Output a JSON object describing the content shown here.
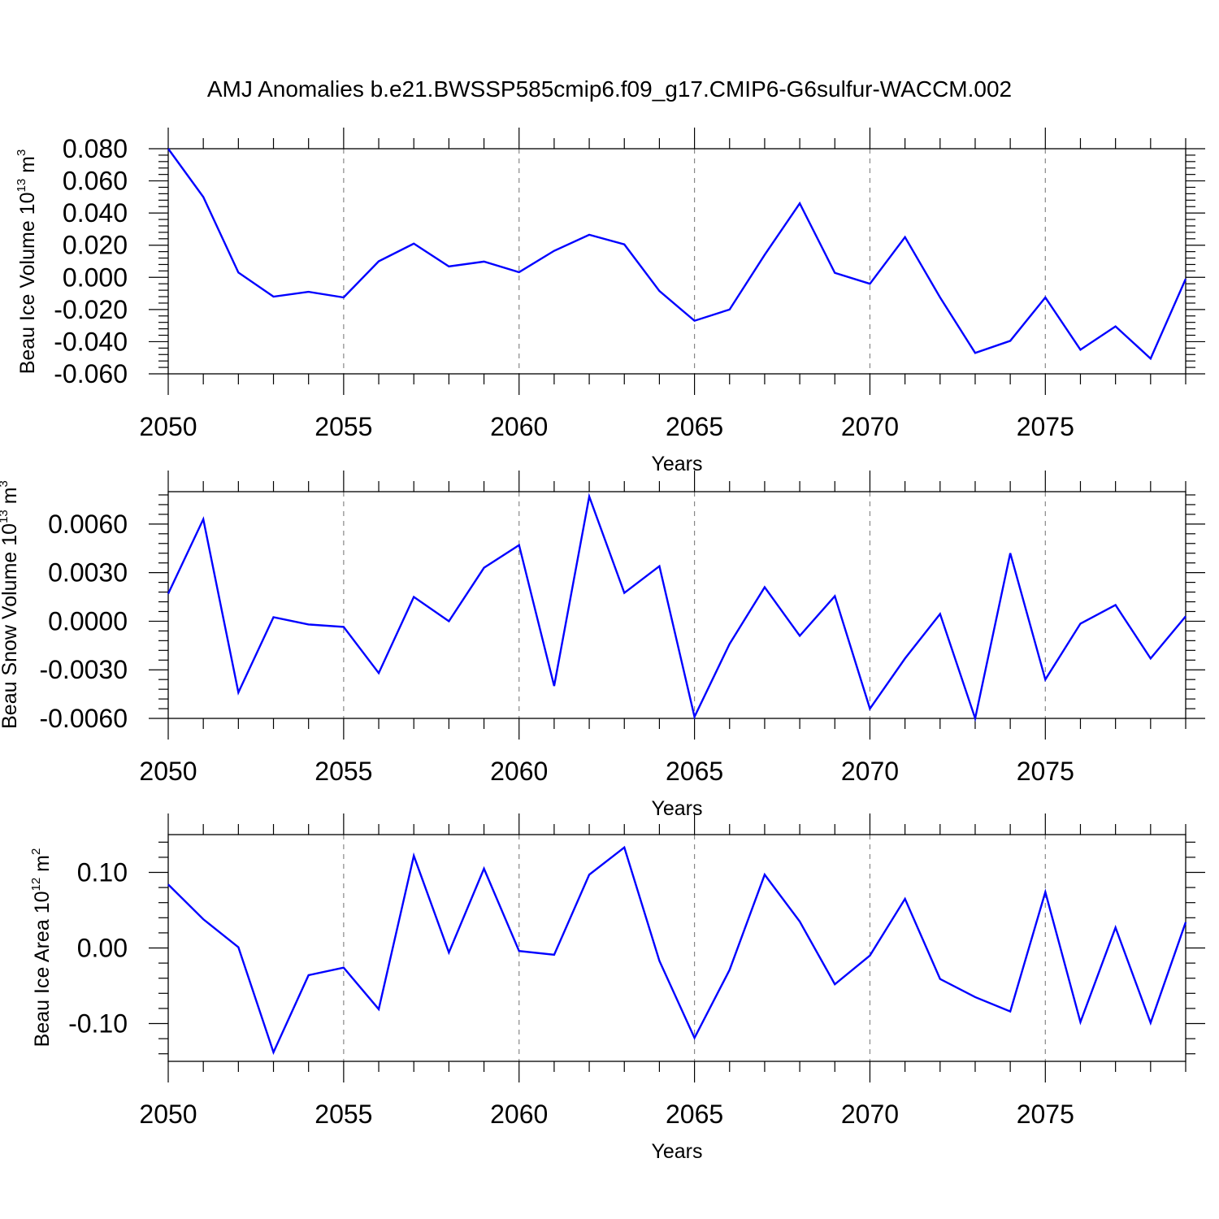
{
  "chart_data": [
    {
      "type": "line",
      "title": "AMJ Anomalies b.e21.BWSSP585cmip6.f09_g17.CMIP6-G6sulfur-WACCM.002",
      "xlabel": "Years",
      "ylabel": "Beau Ice Volume 10",
      "ylabel_sup": "13",
      "ylabel_unit": "m",
      "ylabel_unit_sup": "3",
      "xlim": [
        2050,
        2079
      ],
      "ylim": [
        -0.06,
        0.08
      ],
      "xticks": [
        "2050",
        "2055",
        "2060",
        "2065",
        "2070",
        "2075"
      ],
      "yticks": [
        "0.080",
        "0.060",
        "0.040",
        "0.020",
        "0.000",
        "-0.020",
        "-0.040",
        "-0.060"
      ],
      "grid": "dashed vertical at major x ticks",
      "line_color": "#0000ff",
      "x": [
        2050,
        2051,
        2052,
        2053,
        2054,
        2055,
        2056,
        2057,
        2058,
        2059,
        2060,
        2061,
        2062,
        2063,
        2064,
        2065,
        2066,
        2067,
        2068,
        2069,
        2070,
        2071,
        2072,
        2073,
        2074,
        2075,
        2076,
        2077,
        2078,
        2079
      ],
      "values": [
        0.08,
        0.05,
        0.003,
        -0.012,
        -0.009,
        -0.0125,
        0.01,
        0.021,
        0.0068,
        0.0098,
        0.0032,
        0.0165,
        0.0265,
        0.0205,
        -0.0085,
        -0.027,
        -0.02,
        0.014,
        0.046,
        0.0028,
        -0.004,
        0.025,
        -0.0125,
        -0.047,
        -0.0395,
        -0.0125,
        -0.045,
        -0.0305,
        -0.0505,
        -0.001
      ]
    },
    {
      "type": "line",
      "xlabel": "Years",
      "ylabel": "Beau Snow Volume 10",
      "ylabel_sup": "13",
      "ylabel_unit": "m",
      "ylabel_unit_sup": "3",
      "xlim": [
        2050,
        2079
      ],
      "ylim": [
        -0.006,
        0.008
      ],
      "xticks": [
        "2050",
        "2055",
        "2060",
        "2065",
        "2070",
        "2075"
      ],
      "yticks": [
        "0.0060",
        "0.0030",
        "0.0000",
        "-0.0030",
        "-0.0060"
      ],
      "grid": "dashed vertical at major x ticks",
      "line_color": "#0000ff",
      "x": [
        2050,
        2051,
        2052,
        2053,
        2054,
        2055,
        2056,
        2057,
        2058,
        2059,
        2060,
        2061,
        2062,
        2063,
        2064,
        2065,
        2066,
        2067,
        2068,
        2069,
        2070,
        2071,
        2072,
        2073,
        2074,
        2075,
        2076,
        2077,
        2078,
        2079
      ],
      "values": [
        0.0017,
        0.0063,
        -0.0044,
        0.00025,
        -0.0002,
        -0.00035,
        -0.0032,
        0.0015,
        0.0,
        0.0033,
        0.0047,
        -0.004,
        0.0077,
        0.00175,
        0.0034,
        -0.0059,
        -0.0014,
        0.0021,
        -0.0009,
        0.00155,
        -0.0054,
        -0.0023,
        0.00045,
        -0.006,
        0.0042,
        -0.0036,
        -0.00015,
        0.001,
        -0.0023,
        0.0003
      ]
    },
    {
      "type": "line",
      "xlabel": "Years",
      "ylabel": "Beau Ice Area 10",
      "ylabel_sup": "12",
      "ylabel_unit": "m",
      "ylabel_unit_sup": "2",
      "xlim": [
        2050,
        2079
      ],
      "ylim": [
        -0.15,
        0.15
      ],
      "xticks": [
        "2050",
        "2055",
        "2060",
        "2065",
        "2070",
        "2075"
      ],
      "yticks": [
        "0.10",
        "0.00",
        "-0.10"
      ],
      "grid": "dashed vertical at major x ticks",
      "line_color": "#0000ff",
      "x": [
        2050,
        2051,
        2052,
        2053,
        2054,
        2055,
        2056,
        2057,
        2058,
        2059,
        2060,
        2061,
        2062,
        2063,
        2064,
        2065,
        2066,
        2067,
        2068,
        2069,
        2070,
        2071,
        2072,
        2073,
        2074,
        2075,
        2076,
        2077,
        2078,
        2079
      ],
      "values": [
        0.084,
        0.038,
        0.001,
        -0.138,
        -0.036,
        -0.026,
        -0.081,
        0.122,
        -0.006,
        0.105,
        -0.004,
        -0.009,
        0.097,
        0.133,
        -0.017,
        -0.119,
        -0.029,
        0.097,
        0.035,
        -0.048,
        -0.01,
        0.065,
        -0.041,
        -0.065,
        -0.084,
        0.074,
        -0.098,
        0.027,
        -0.099,
        0.034
      ]
    }
  ]
}
